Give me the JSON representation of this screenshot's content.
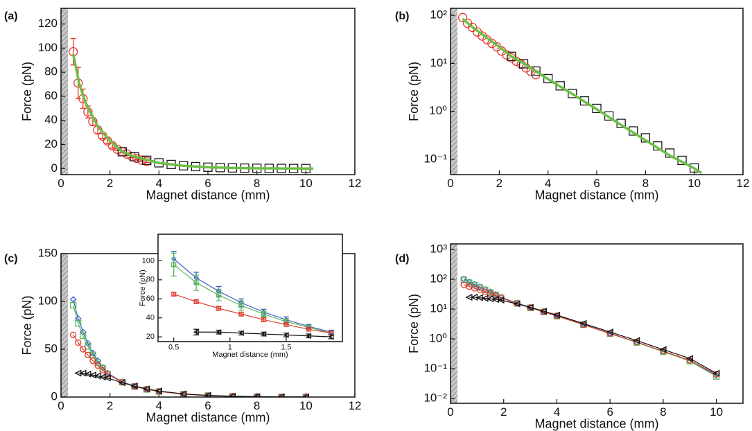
{
  "chart_data": [
    {
      "type": "scatter",
      "label": "(a)",
      "xlabel": "Magnet distance (mm)",
      "ylabel": "Force (pN)",
      "xlim": [
        0,
        12
      ],
      "xticks": [
        0,
        2,
        4,
        6,
        8,
        10,
        12
      ],
      "ylim": [
        -5,
        133
      ],
      "yticks": [
        0,
        20,
        40,
        60,
        80,
        100,
        120
      ],
      "ylog": false,
      "series": [
        {
          "color": "#e8352b",
          "marker": "circle",
          "line": false,
          "x": [
            0.5,
            0.7,
            0.9,
            1.1,
            1.3,
            1.5,
            1.7,
            1.9,
            2.1,
            2.3,
            2.5,
            2.7,
            2.9,
            3.1,
            3.3,
            3.5
          ],
          "values": [
            97,
            71,
            58,
            47,
            39,
            32,
            27,
            23,
            19,
            16,
            14,
            12,
            10,
            8.5,
            7,
            6
          ],
          "errors": [
            11,
            13,
            8,
            5,
            3,
            3,
            2,
            2,
            2,
            1,
            1,
            1,
            1,
            1,
            1,
            1
          ]
        },
        {
          "color": "#1a1a1a",
          "marker": "square",
          "line": false,
          "x": [
            2.5,
            3,
            3.5,
            4,
            4.5,
            5,
            5.5,
            6,
            6.5,
            7,
            7.5,
            8,
            8.5,
            9,
            9.5,
            10
          ],
          "values": [
            14,
            9.8,
            6.9,
            4.8,
            3.4,
            2.35,
            1.65,
            1.15,
            0.8,
            0.56,
            0.39,
            0.28,
            0.19,
            0.135,
            0.095,
            0.066
          ]
        },
        {
          "color": "#6cbf45",
          "marker": "none",
          "line": true,
          "x": [
            0.5,
            0.75,
            1,
            1.5,
            2,
            2.5,
            3,
            4,
            5,
            6,
            7,
            8,
            9,
            10,
            10.3
          ],
          "values": [
            95,
            70,
            55,
            35,
            23,
            14,
            10,
            4.7,
            2.3,
            1.1,
            0.52,
            0.25,
            0.12,
            0.065,
            0.052
          ]
        }
      ]
    },
    {
      "type": "scatter",
      "label": "(b)",
      "xlabel": "Magnet distance (mm)",
      "ylabel": "Force (pN)",
      "xlim": [
        0,
        12
      ],
      "xticks": [
        0,
        2,
        4,
        6,
        8,
        10,
        12
      ],
      "ylim": [
        0.048,
        140
      ],
      "yticks": [
        {
          "value": 0.1,
          "label": "10⁻¹"
        },
        {
          "value": 1,
          "label": "10⁰"
        },
        {
          "value": 10,
          "label": "10¹"
        },
        {
          "value": 100,
          "label": "10²"
        }
      ],
      "ylog": true,
      "series": [
        {
          "color": "#e8352b",
          "marker": "circle",
          "line": false,
          "x": [
            0.5,
            0.7,
            0.9,
            1.1,
            1.3,
            1.5,
            1.7,
            1.9,
            2.1,
            2.3,
            2.5,
            2.7,
            2.9,
            3.1,
            3.3,
            3.5
          ],
          "values": [
            90,
            68,
            56,
            45,
            37,
            31,
            26,
            22,
            18,
            15,
            13,
            11,
            9.5,
            8,
            6.8,
            5.8
          ]
        },
        {
          "color": "#1a1a1a",
          "marker": "square",
          "line": false,
          "x": [
            2.5,
            3,
            3.5,
            4,
            4.5,
            5,
            5.5,
            6,
            6.5,
            7,
            7.5,
            8,
            8.5,
            9,
            9.5,
            10
          ],
          "values": [
            14,
            9.8,
            6.9,
            4.8,
            3.4,
            2.35,
            1.65,
            1.15,
            0.8,
            0.56,
            0.39,
            0.28,
            0.19,
            0.135,
            0.095,
            0.066
          ]
        },
        {
          "color": "#6cbf45",
          "marker": "none",
          "line": true,
          "x": [
            0.5,
            0.75,
            1,
            1.5,
            2,
            2.5,
            3,
            4,
            5,
            6,
            7,
            8,
            9,
            10,
            10.3
          ],
          "values": [
            85,
            66,
            52,
            34,
            22,
            14,
            10,
            4.7,
            2.3,
            1.1,
            0.52,
            0.25,
            0.12,
            0.065,
            0.052
          ]
        }
      ]
    },
    {
      "type": "line",
      "label": "(c)",
      "xlabel": "Magnet distance (mm)",
      "ylabel": "Force (pN)",
      "xlim": [
        0,
        12
      ],
      "xticks": [
        0,
        2,
        4,
        6,
        8,
        10,
        12
      ],
      "ylim": [
        0,
        150
      ],
      "yticks": [
        0,
        50,
        100,
        150
      ],
      "ylog": false,
      "x": [
        0.5,
        0.7,
        0.9,
        1.1,
        1.3,
        1.5,
        1.7,
        1.9,
        2.5,
        3,
        3.5,
        4,
        5,
        6,
        7,
        8,
        9,
        10
      ],
      "series": [
        {
          "color": "#3a5fc8",
          "marker": "diamond",
          "line": true,
          "values": [
            102,
            82,
            68,
            56,
            46,
            38,
            31,
            25,
            16,
            11.5,
            8.3,
            6,
            3.1,
            1.55,
            0.78,
            0.38,
            0.18,
            0.08
          ]
        },
        {
          "color": "#5cb85c",
          "marker": "square",
          "line": true,
          "values": [
            96,
            77,
            64,
            53,
            44,
            36,
            30,
            24,
            15.5,
            11,
            8,
            5.8,
            3,
            1.5,
            0.76,
            0.37,
            0.18,
            0.085
          ]
        },
        {
          "color": "#e03a2b",
          "marker": "circle",
          "line": true,
          "values": [
            65,
            57,
            50,
            44,
            38,
            33,
            28,
            24,
            15.5,
            11.2,
            8.1,
            5.9,
            3,
            1.52,
            0.78,
            0.39,
            0.19,
            0.09
          ]
        },
        {
          "color": "#111111",
          "marker": "triangle-left",
          "line": true,
          "values": [
            null,
            25,
            25,
            24,
            23,
            22,
            21,
            20,
            15,
            11.5,
            8.5,
            6.3,
            3.3,
            1.7,
            0.88,
            0.44,
            0.22,
            0.1
          ]
        }
      ]
    },
    {
      "type": "line",
      "label": "(d)",
      "xlabel": "Magnet distance (mm)",
      "ylabel": "Force (pN)",
      "xlim": [
        0,
        11
      ],
      "xticks": [
        0,
        2,
        4,
        6,
        8,
        10
      ],
      "ylim": [
        0.0069,
        1540
      ],
      "yticks": [
        {
          "value": 0.01,
          "label": "10⁻²"
        },
        {
          "value": 0.1,
          "label": "10⁻¹"
        },
        {
          "value": 1,
          "label": "10⁰"
        },
        {
          "value": 10,
          "label": "10¹"
        },
        {
          "value": 100,
          "label": "10²"
        },
        {
          "value": 1000,
          "label": "10³"
        }
      ],
      "ylog": true,
      "x": [
        0.5,
        0.7,
        0.9,
        1.1,
        1.3,
        1.5,
        1.7,
        1.9,
        2.5,
        3,
        3.5,
        4,
        5,
        6,
        7,
        8,
        9,
        10
      ],
      "series": [
        {
          "color": "#3a5fc8",
          "marker": "diamond",
          "line": true,
          "values": [
            102,
            82,
            68,
            56,
            46,
            38,
            31,
            25,
            16,
            11.5,
            8.3,
            6,
            3.1,
            1.55,
            0.78,
            0.38,
            0.18,
            0.06
          ]
        },
        {
          "color": "#5cb85c",
          "marker": "square",
          "line": true,
          "values": [
            96,
            77,
            64,
            53,
            44,
            36,
            30,
            24,
            15.5,
            11,
            8,
            5.8,
            3,
            1.5,
            0.76,
            0.37,
            0.18,
            0.055
          ]
        },
        {
          "color": "#e03a2b",
          "marker": "circle",
          "line": true,
          "values": [
            65,
            57,
            50,
            44,
            38,
            33,
            28,
            24,
            15.5,
            11.2,
            8.1,
            5.9,
            3,
            1.52,
            0.78,
            0.39,
            0.19,
            0.065
          ]
        },
        {
          "color": "#111111",
          "marker": "triangle-left",
          "line": true,
          "values": [
            null,
            25,
            25,
            24,
            23,
            22,
            21,
            20,
            15,
            11.5,
            8.5,
            6.3,
            3.3,
            1.7,
            0.88,
            0.44,
            0.22,
            0.07
          ]
        }
      ]
    },
    {
      "type": "line",
      "xlabel": "Magnet distance (mm)",
      "ylabel": "Force (pN)",
      "xlim": [
        0.36,
        2.0
      ],
      "xticks": [
        0.5,
        1,
        1.5
      ],
      "ylim": [
        15,
        128
      ],
      "yticks": [
        20,
        40,
        60,
        80,
        100
      ],
      "ylog": false,
      "x": [
        0.5,
        0.7,
        0.9,
        1.1,
        1.3,
        1.5,
        1.7,
        1.9
      ],
      "series": [
        {
          "color": "#3a5fc8",
          "marker": "diamond",
          "line": true,
          "values": [
            102,
            82,
            68,
            56,
            46,
            38,
            31,
            25
          ],
          "errors": [
            8,
            6,
            5,
            4,
            3,
            3,
            2,
            2
          ]
        },
        {
          "color": "#5cb85c",
          "marker": "square",
          "line": true,
          "values": [
            96,
            77,
            64,
            53,
            44,
            36,
            30,
            24
          ],
          "errors": [
            12,
            8,
            6,
            5,
            3,
            3,
            2,
            2
          ]
        },
        {
          "color": "#e03a2b",
          "marker": "circle",
          "line": true,
          "values": [
            65,
            57,
            50,
            44,
            38,
            33,
            28,
            24
          ],
          "errors": [
            2,
            2,
            2,
            2,
            2,
            2,
            2,
            2
          ]
        },
        {
          "color": "#111111",
          "marker": "triangle-left",
          "line": true,
          "values": [
            null,
            25,
            25,
            24,
            23,
            22,
            21,
            20
          ],
          "errors": [
            null,
            3,
            2,
            2,
            2,
            2,
            2,
            2
          ]
        }
      ]
    }
  ]
}
